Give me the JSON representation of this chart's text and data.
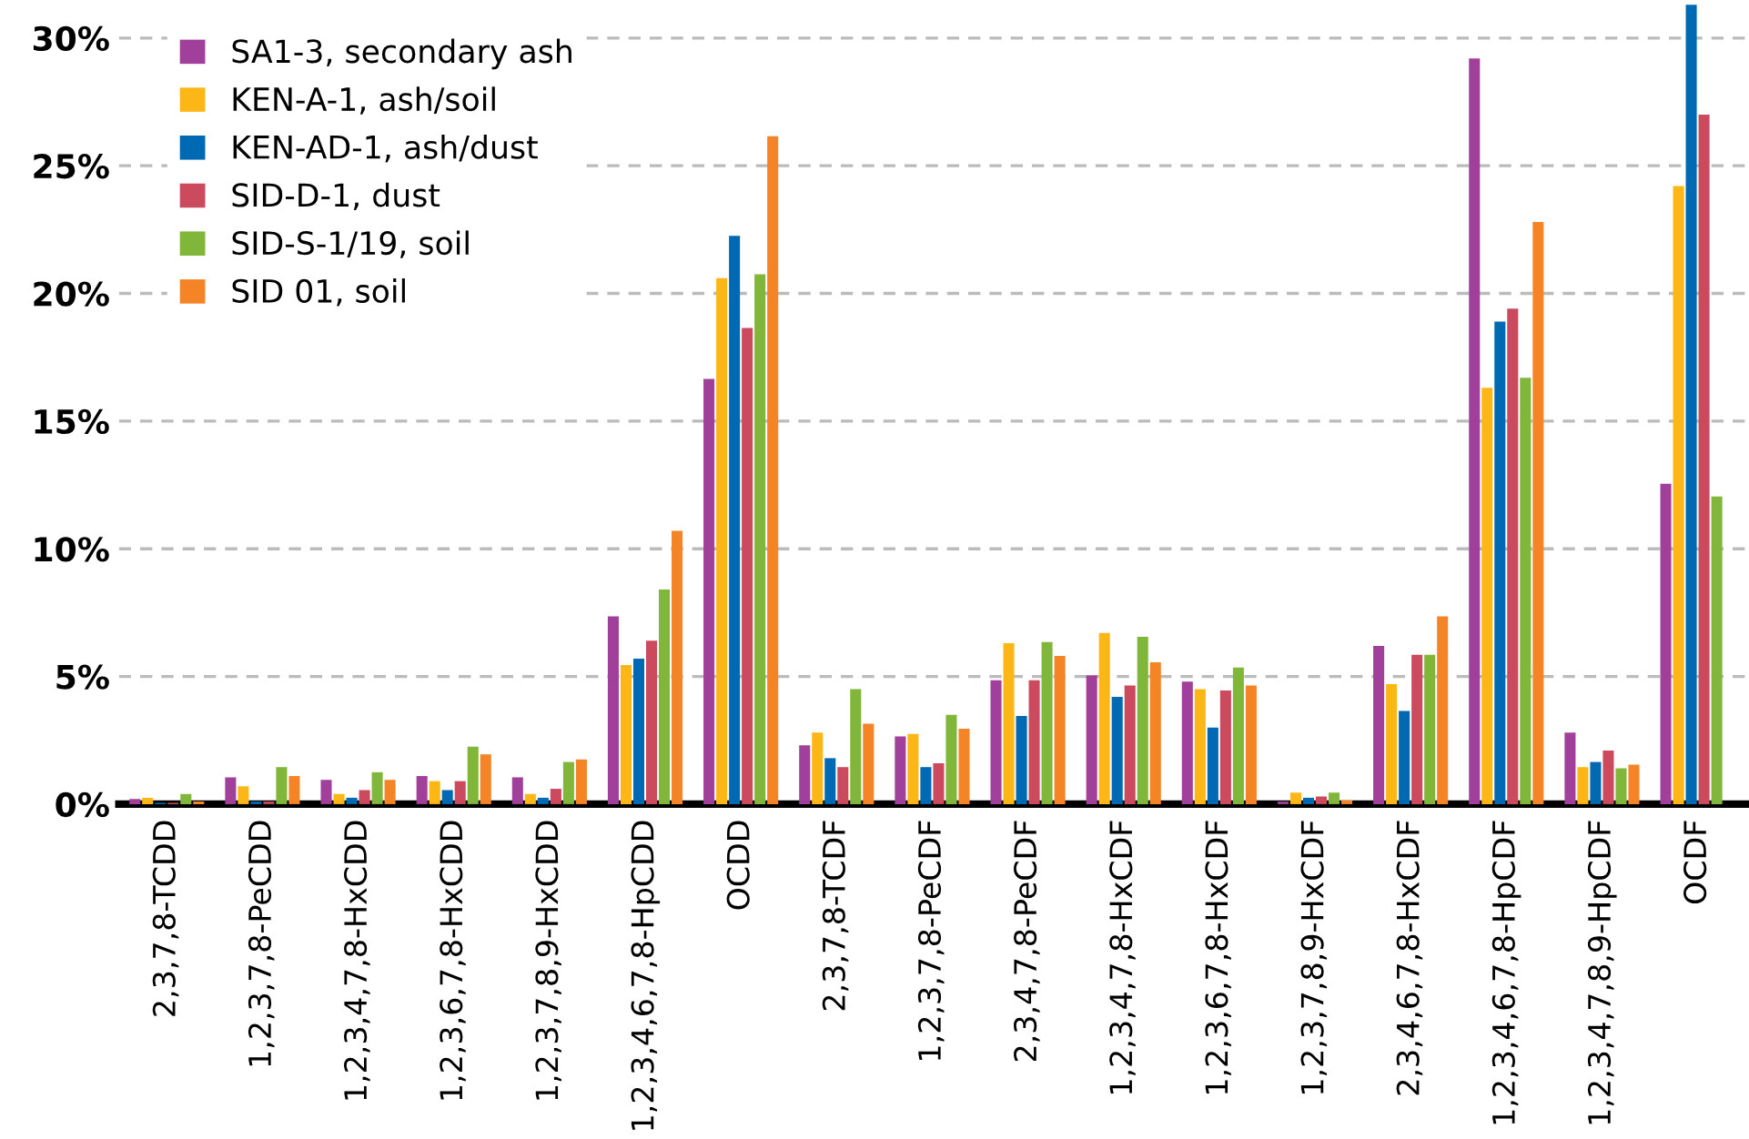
{
  "chart_data": {
    "type": "bar",
    "categories": [
      "2,3,7,8-TCDD",
      "1,2,3,7,8-PeCDD",
      "1,2,3,4,7,8-HxCDD",
      "1,2,3,6,7,8-HxCDD",
      "1,2,3,7,8,9-HxCDD",
      "1,2,3,4,6,7,8-HpCDD",
      "OCDD",
      "2,3,7,8-TCDF",
      "1,2,3,7,8-PeCDF",
      "2,3,4,7,8-PeCDF",
      "1,2,3,4,7,8-HxCDF",
      "1,2,3,6,7,8-HxCDF",
      "1,2,3,7,8,9-HxCDF",
      "2,3,4,6,7,8-HxCDF",
      "1,2,3,4,6,7,8-HpCDF",
      "1,2,3,4,7,8,9-HpCDF",
      "OCDF"
    ],
    "series": [
      {
        "name": "SA1-3, secondary ash",
        "color": "#a0409a",
        "values": [
          0.2,
          1.05,
          0.95,
          1.1,
          1.05,
          7.35,
          16.65,
          2.3,
          2.65,
          4.85,
          5.05,
          4.8,
          0.1,
          6.2,
          29.2,
          2.8,
          12.55
        ]
      },
      {
        "name": "KEN-A-1, ash/soil",
        "color": "#fcb716",
        "values": [
          0.25,
          0.7,
          0.4,
          0.9,
          0.4,
          5.45,
          20.6,
          2.8,
          2.75,
          6.3,
          6.7,
          4.5,
          0.45,
          4.7,
          16.3,
          1.45,
          24.2
        ]
      },
      {
        "name": "KEN-AD-1, ash/dust",
        "color": "#0069b4",
        "values": [
          0.05,
          0.1,
          0.25,
          0.55,
          0.25,
          5.7,
          22.25,
          1.8,
          1.45,
          3.45,
          4.2,
          3.0,
          0.25,
          3.65,
          18.9,
          1.65,
          31.3
        ]
      },
      {
        "name": "SID-D-1, dust",
        "color": "#cc4a5d",
        "values": [
          0.05,
          0.1,
          0.55,
          0.9,
          0.6,
          6.4,
          18.65,
          1.45,
          1.6,
          4.85,
          4.65,
          4.45,
          0.3,
          5.85,
          19.4,
          2.1,
          27.0
        ]
      },
      {
        "name": "SID-S-1/19, soil",
        "color": "#80b63a",
        "values": [
          0.4,
          1.45,
          1.25,
          2.25,
          1.65,
          8.4,
          20.75,
          4.5,
          3.5,
          6.35,
          6.55,
          5.35,
          0.45,
          5.85,
          16.7,
          1.4,
          12.05
        ]
      },
      {
        "name": "SID 01, soil",
        "color": "#f58426",
        "values": [
          0.1,
          1.1,
          0.95,
          1.95,
          1.75,
          10.7,
          26.15,
          3.15,
          2.95,
          5.8,
          5.55,
          4.65,
          0.15,
          7.35,
          22.8,
          1.55,
          null
        ]
      }
    ],
    "ylim": [
      0,
      31.4
    ],
    "yticks": [
      {
        "value": 0,
        "label": "0%"
      },
      {
        "value": 5,
        "label": "5%"
      },
      {
        "value": 10,
        "label": "10%"
      },
      {
        "value": 15,
        "label": "15%"
      },
      {
        "value": 20,
        "label": "20%"
      },
      {
        "value": 25,
        "label": "25%"
      },
      {
        "value": 30,
        "label": "30%"
      }
    ],
    "grid": "y",
    "legend": "top left"
  }
}
